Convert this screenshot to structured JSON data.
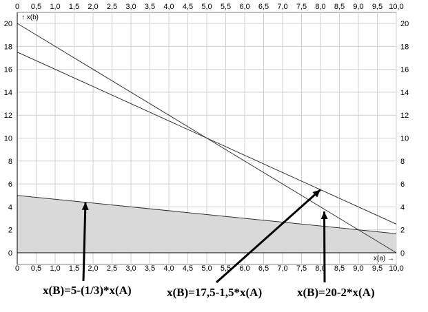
{
  "chart_data": {
    "type": "line",
    "x_axis": {
      "label": "x(a) →",
      "min": 0,
      "max": 10,
      "ticks": [
        "0",
        "0,5",
        "1,0",
        "1,5",
        "2,0",
        "2,5",
        "3,0",
        "3,5",
        "4,0",
        "4,5",
        "5,0",
        "5,5",
        "6,0",
        "6,5",
        "7,0",
        "7,5",
        "8,0",
        "8,5",
        "9,0",
        "9,5",
        "10,0"
      ]
    },
    "y_axis": {
      "label": "↑ x(b)",
      "min": 0,
      "max": 20,
      "ticks": [
        "0",
        "2",
        "4",
        "6",
        "8",
        "10",
        "12",
        "14",
        "16",
        "18",
        "20"
      ]
    },
    "grid": true,
    "series": [
      {
        "name": "x(B)=20-2*x(A)",
        "x": [
          0,
          10
        ],
        "y": [
          20,
          0
        ]
      },
      {
        "name": "x(B)=17,5-1,5*x(A)",
        "x": [
          0,
          10
        ],
        "y": [
          17.5,
          2.5
        ]
      },
      {
        "name": "x(B)=5-(1/3)*x(A)",
        "x": [
          0,
          10
        ],
        "y": [
          5,
          1.67
        ],
        "filled": true
      }
    ],
    "annotations": [
      {
        "text": "x(B)=5-(1/3)*x(A)",
        "points_to": [
          1.8,
          4.4
        ]
      },
      {
        "text": "x(B)=17,5-1,5*x(A)",
        "points_to": [
          8.0,
          5.5
        ]
      },
      {
        "text": "x(B)=20-2*x(A)",
        "points_to": [
          8.1,
          3.6
        ]
      }
    ],
    "colors": {
      "line": "#333333",
      "fill": "#d9d9d9",
      "grid": "#cfcfcf"
    }
  }
}
